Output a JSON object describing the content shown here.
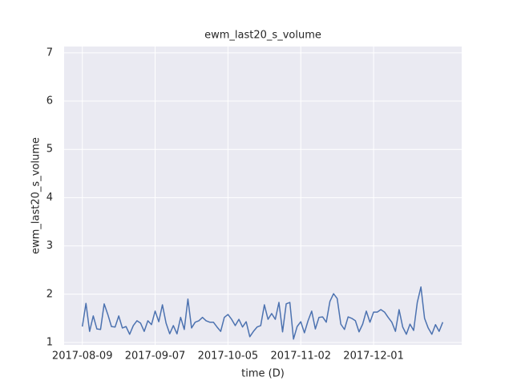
{
  "chart_data": {
    "type": "line",
    "title": "ewm_last20_s_volume",
    "x_label": "time (D)",
    "y_label": "ewm_last20_s_volume",
    "series": [
      {
        "name": "ewm_last20_s_volume",
        "color": "#4c72b0",
        "values": [
          1.33,
          1.81,
          1.23,
          1.55,
          1.28,
          1.27,
          1.8,
          1.58,
          1.33,
          1.32,
          1.55,
          1.3,
          1.33,
          1.17,
          1.35,
          1.45,
          1.4,
          1.23,
          1.45,
          1.37,
          1.65,
          1.43,
          1.78,
          1.4,
          1.18,
          1.35,
          1.18,
          1.52,
          1.27,
          1.9,
          1.3,
          1.42,
          1.45,
          1.52,
          1.45,
          1.42,
          1.42,
          1.32,
          1.23,
          1.52,
          1.58,
          1.48,
          1.35,
          1.48,
          1.32,
          1.43,
          1.12,
          1.23,
          1.32,
          1.35,
          1.78,
          1.48,
          1.6,
          1.48,
          1.83,
          1.22,
          1.8,
          1.83,
          1.07,
          1.33,
          1.43,
          1.2,
          1.45,
          1.65,
          1.28,
          1.52,
          1.53,
          1.42,
          1.85,
          2.01,
          1.91,
          1.38,
          1.27,
          1.53,
          1.5,
          1.45,
          1.22,
          1.38,
          1.65,
          1.42,
          1.63,
          1.63,
          1.68,
          1.63,
          1.52,
          1.42,
          1.23,
          1.68,
          1.32,
          1.17,
          1.38,
          1.25,
          1.83,
          2.15,
          1.5,
          1.3,
          1.17,
          1.37,
          1.23,
          1.42
        ]
      }
    ],
    "xlim": [
      -5,
      104.2
    ],
    "xticks": [
      {
        "value": 0,
        "label": "2017-08-09"
      },
      {
        "value": 20,
        "label": "2017-09-07"
      },
      {
        "value": 40,
        "label": "2017-10-05"
      },
      {
        "value": 60,
        "label": "2017-11-02"
      },
      {
        "value": 80,
        "label": "2017-12-01"
      }
    ],
    "ylim": [
      0.95,
      7.13
    ],
    "yticks": [
      1,
      2,
      3,
      4,
      5,
      6,
      7
    ],
    "grid": true,
    "background": "#eaeaf2"
  }
}
